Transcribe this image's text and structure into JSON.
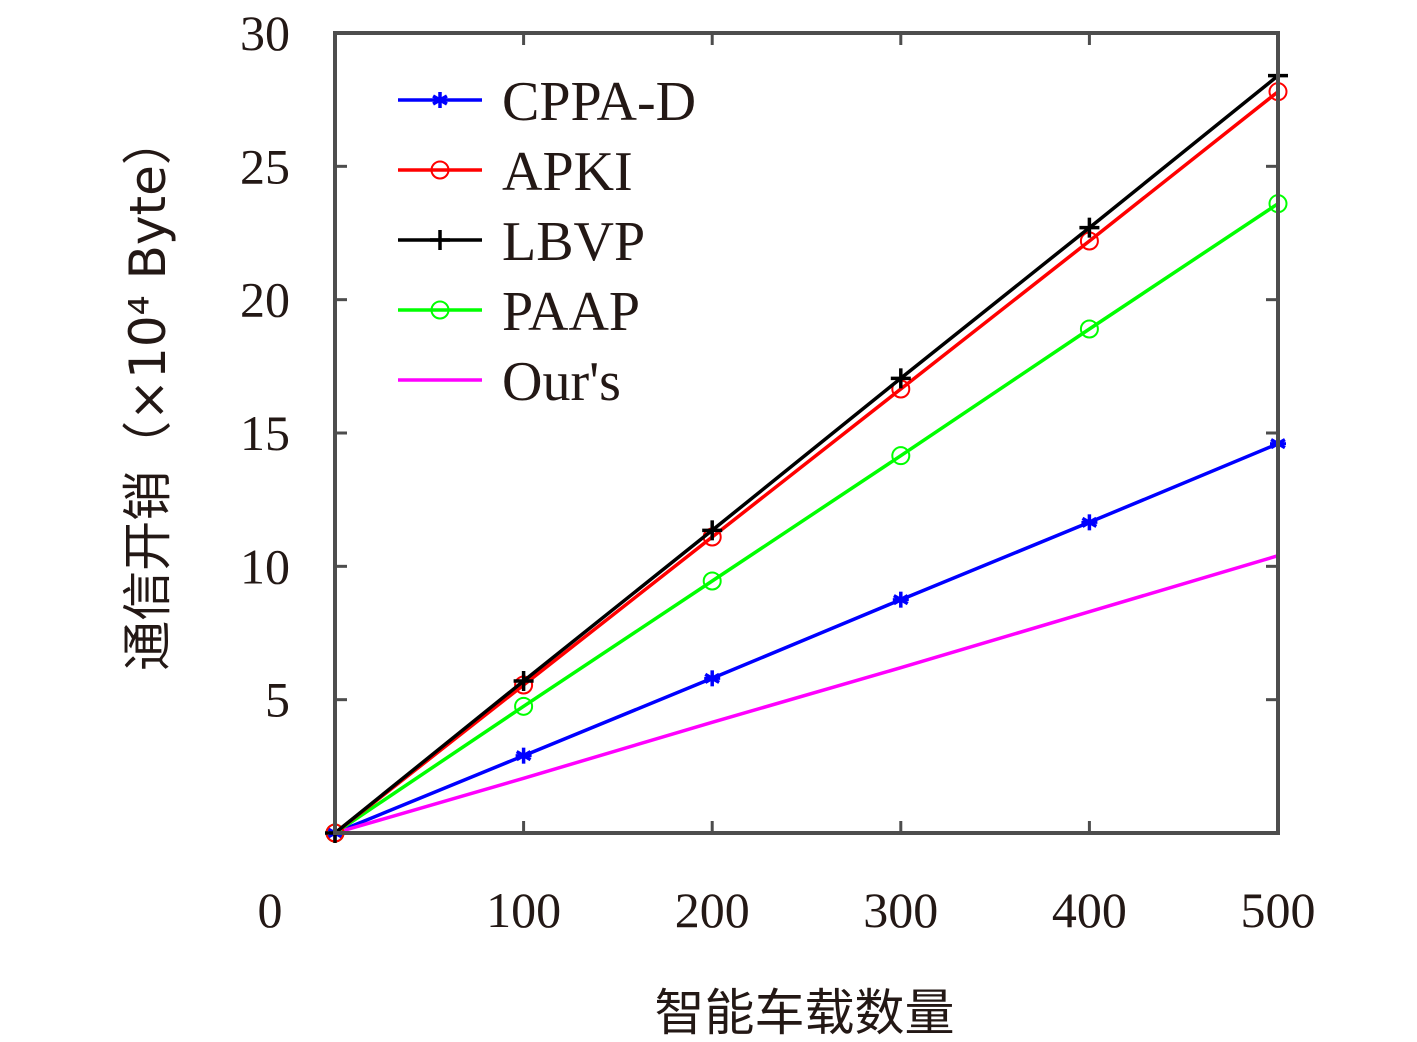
{
  "chart_data": {
    "type": "line",
    "xlabel": "智能车载数量",
    "ylabel": "通信开销（×10⁴ Byte）",
    "xlim": [
      0,
      500
    ],
    "ylim": [
      0,
      30
    ],
    "x_ticks": [
      "0",
      "100",
      "200",
      "300",
      "400",
      "500"
    ],
    "y_ticks": [
      "5",
      "10",
      "15",
      "20",
      "25",
      "30"
    ],
    "grid": false,
    "legend_position": "top-left",
    "x": [
      0,
      100,
      200,
      300,
      400,
      500
    ],
    "series": [
      {
        "name": "CPPA-D",
        "color": "#0000ff",
        "marker": "asterisk",
        "values": [
          0,
          2.9,
          5.8,
          8.75,
          11.65,
          14.6
        ]
      },
      {
        "name": "APKI",
        "color": "#ff0000",
        "marker": "circle",
        "values": [
          0,
          5.55,
          11.1,
          16.65,
          22.2,
          27.8
        ]
      },
      {
        "name": "LBVP",
        "color": "#000000",
        "marker": "plus",
        "values": [
          0,
          5.7,
          11.35,
          17.05,
          22.7,
          28.4
        ]
      },
      {
        "name": "PAAP",
        "color": "#00ff00",
        "marker": "circle",
        "values": [
          0,
          4.75,
          9.45,
          14.15,
          18.9,
          23.6
        ]
      },
      {
        "name": "Our's",
        "color": "#ff00ff",
        "marker": "none",
        "values": [
          0,
          2.05,
          4.15,
          6.2,
          8.3,
          10.4
        ]
      }
    ]
  }
}
